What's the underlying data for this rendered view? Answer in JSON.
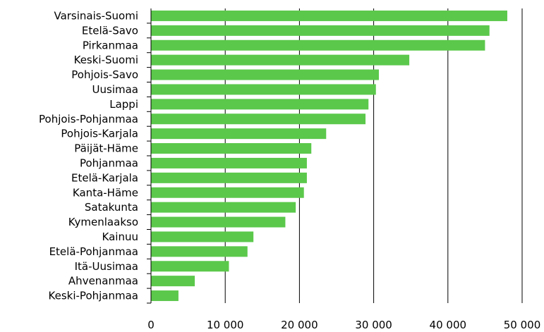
{
  "chart_data": {
    "type": "bar",
    "orientation": "horizontal",
    "categories": [
      "Varsinais-Suomi",
      "Etelä-Savo",
      "Pirkanmaa",
      "Keski-Suomi",
      "Pohjois-Savo",
      "Uusimaa",
      "Lappi",
      "Pohjois-Pohjanmaa",
      "Pohjois-Karjala",
      "Päijät-Häme",
      "Pohjanmaa",
      "Etelä-Karjala",
      "Kanta-Häme",
      "Satakunta",
      "Kymenlaakso",
      "Kainuu",
      "Etelä-Pohjanmaa",
      "Itä-Uusimaa",
      "Ahvenanmaa",
      "Keski-Pohjanmaa"
    ],
    "values": [
      48000,
      45600,
      45000,
      34800,
      30700,
      30300,
      29300,
      28900,
      23600,
      21600,
      21000,
      21000,
      20600,
      19500,
      18100,
      13800,
      13000,
      10500,
      5900,
      3700
    ],
    "xlim": [
      0,
      50000
    ],
    "ticks": [
      0,
      10000,
      20000,
      30000,
      40000,
      50000
    ],
    "tick_labels": [
      "0",
      "10 000",
      "20 000",
      "30 000",
      "40 000",
      "50 000"
    ],
    "grid": true,
    "bar_color": "#5bc84b",
    "axis_color": "#000000"
  }
}
